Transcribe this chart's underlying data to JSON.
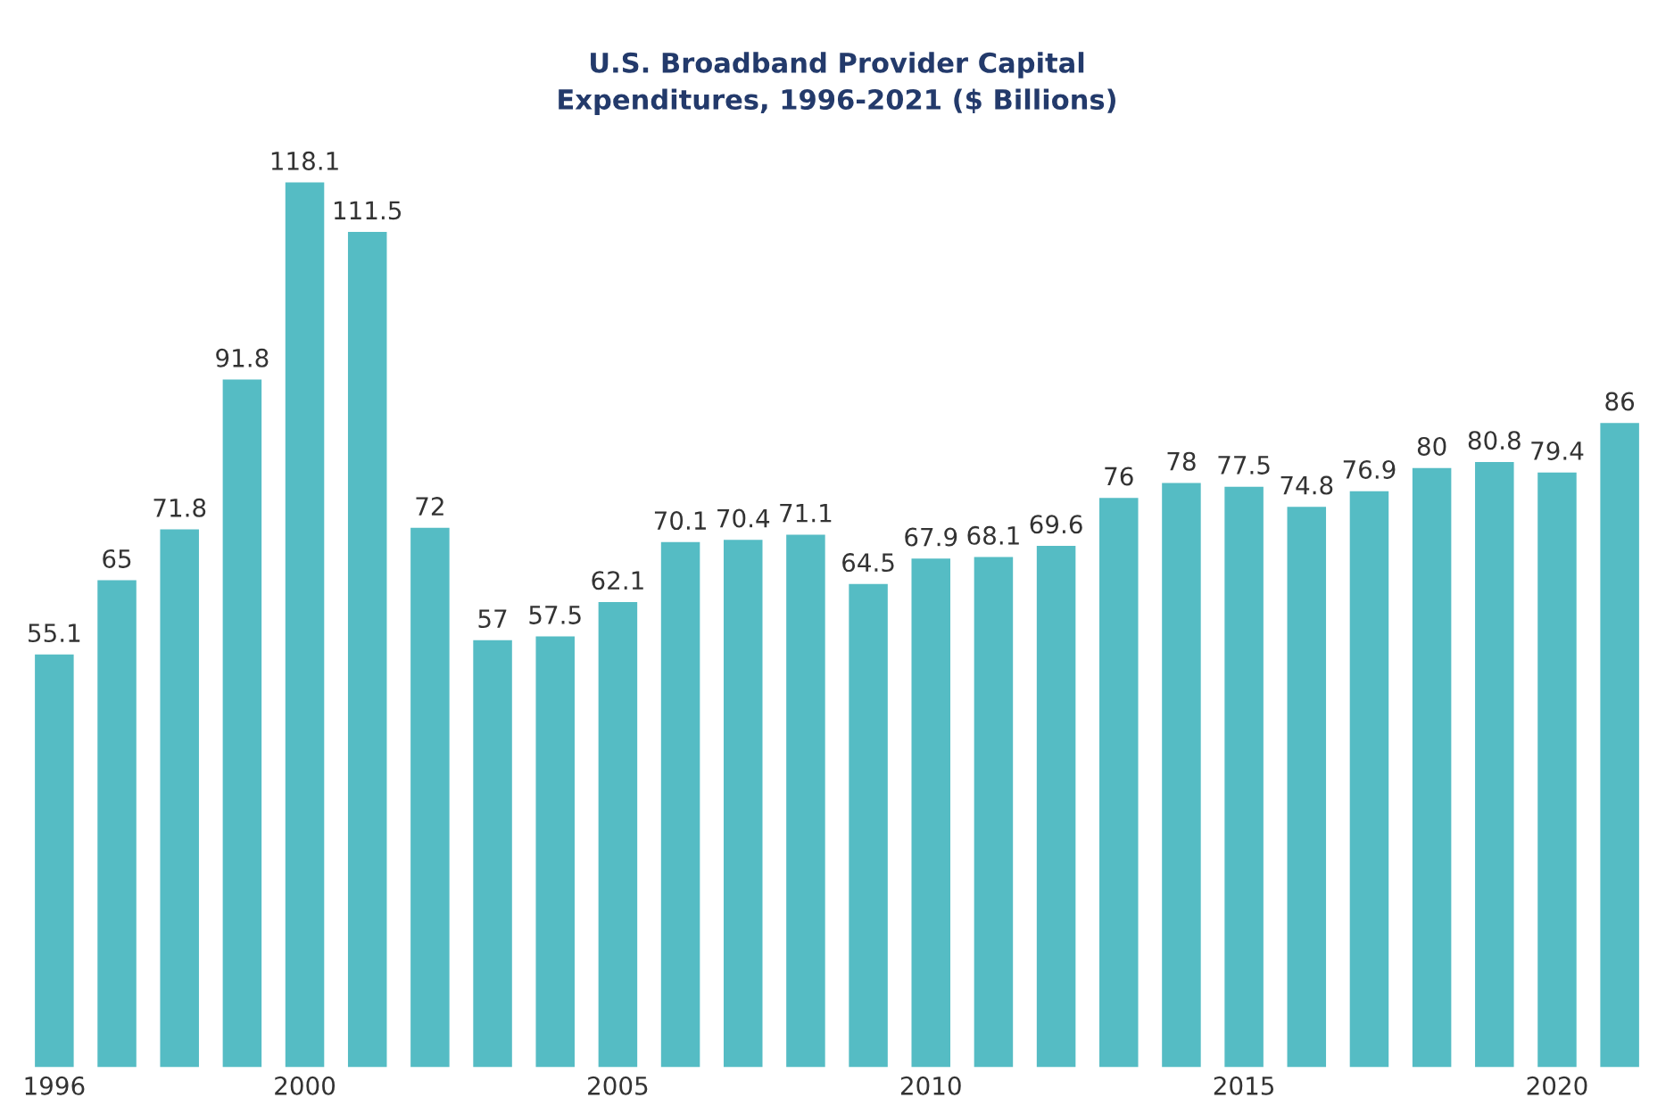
{
  "chart_data": {
    "type": "bar",
    "title": "U.S. Broadband Provider Capital\nExpenditures, 1996-2021 ($ Billions)",
    "categories": [
      "1996",
      null,
      null,
      null,
      "2000",
      null,
      null,
      null,
      null,
      "2005",
      null,
      null,
      null,
      null,
      "2010",
      null,
      null,
      null,
      null,
      "2015",
      null,
      null,
      null,
      null,
      "2020",
      null
    ],
    "values": [
      55.1,
      65,
      71.8,
      91.8,
      118.1,
      111.5,
      72,
      57,
      57.5,
      62.1,
      70.1,
      70.4,
      71.1,
      64.5,
      67.9,
      68.1,
      69.6,
      76,
      78,
      77.5,
      74.8,
      76.9,
      80,
      80.8,
      79.4,
      86
    ],
    "color": "#55bcc4",
    "data_labels": true,
    "grid": false
  }
}
